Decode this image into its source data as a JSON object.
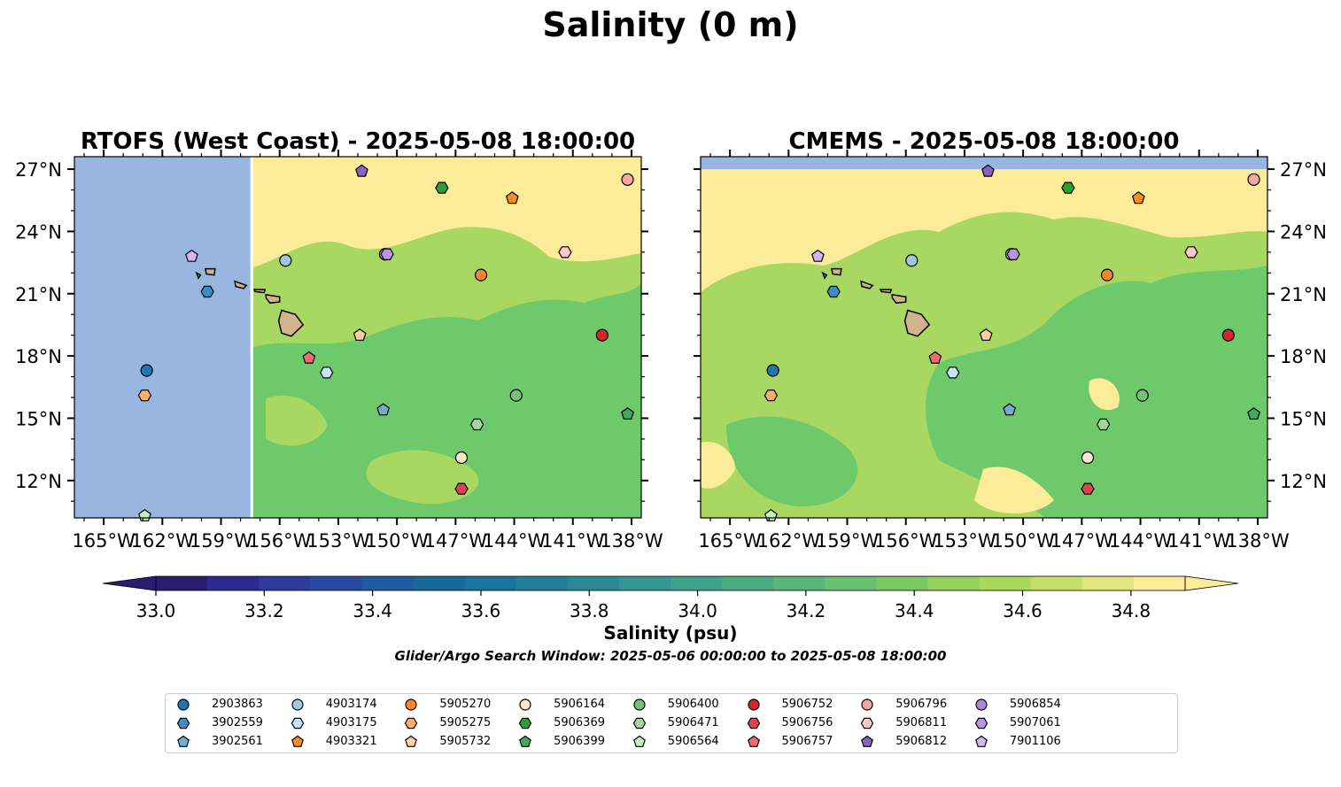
{
  "figure": {
    "title": "Salinity (0 m)",
    "colorbar_label": "Salinity (psu)",
    "search_window_note": "Glider/Argo Search Window: 2025-05-06 00:00:00 to 2025-05-08 18:00:00"
  },
  "panels": [
    {
      "id": "left",
      "title": "RTOFS (West Coast) - 2025-05-08 18:00:00",
      "model": "RTOFS (West Coast)",
      "time": "2025-05-08 18:00:00",
      "lat_labels_side": "left",
      "data_lon_min": -157.5
    },
    {
      "id": "right",
      "title": "CMEMS - 2025-05-08 18:00:00",
      "model": "CMEMS",
      "time": "2025-05-08 18:00:00",
      "lat_labels_side": "right",
      "data_lat_max": 27.0
    }
  ],
  "map_extent": {
    "lon_min": -166.5,
    "lon_max": -137.5,
    "lat_min": 10.2,
    "lat_max": 27.6
  },
  "lon_ticks": [
    {
      "value": -165,
      "label": "165°W"
    },
    {
      "value": -162,
      "label": "162°W"
    },
    {
      "value": -159,
      "label": "159°W"
    },
    {
      "value": -156,
      "label": "156°W"
    },
    {
      "value": -153,
      "label": "153°W"
    },
    {
      "value": -150,
      "label": "150°W"
    },
    {
      "value": -147,
      "label": "147°W"
    },
    {
      "value": -144,
      "label": "144°W"
    },
    {
      "value": -141,
      "label": "141°W"
    },
    {
      "value": -138,
      "label": "138°W"
    }
  ],
  "lat_ticks": [
    {
      "value": 27,
      "label": "27°N"
    },
    {
      "value": 24,
      "label": "24°N"
    },
    {
      "value": 21,
      "label": "21°N"
    },
    {
      "value": 18,
      "label": "18°N"
    },
    {
      "value": 15,
      "label": "15°N"
    },
    {
      "value": 12,
      "label": "12°N"
    }
  ],
  "colors": {
    "land": "#d2b48c",
    "no_data": "#98b6e0",
    "salinity_high": "#fcec9a",
    "salinity_mid": "#a8d862",
    "salinity_low": "#6ec96a"
  },
  "colorbar": {
    "min": 33.0,
    "max": 34.9,
    "step": 0.1,
    "ticks": [
      {
        "value": 33.0,
        "label": "33.0"
      },
      {
        "value": 33.2,
        "label": "33.2"
      },
      {
        "value": 33.4,
        "label": "33.4"
      },
      {
        "value": 33.6,
        "label": "33.6"
      },
      {
        "value": 33.8,
        "label": "33.8"
      },
      {
        "value": 34.0,
        "label": "34.0"
      },
      {
        "value": 34.2,
        "label": "34.2"
      },
      {
        "value": 34.4,
        "label": "34.4"
      },
      {
        "value": 34.6,
        "label": "34.6"
      },
      {
        "value": 34.8,
        "label": "34.8"
      }
    ],
    "bin_colors": [
      "#2a1d70",
      "#2e2a8f",
      "#2f3a9c",
      "#2a49a0",
      "#1f5a9f",
      "#19689c",
      "#1a749a",
      "#217f98",
      "#2a8a95",
      "#359591",
      "#40a08b",
      "#4caa83",
      "#5ab57a",
      "#6ac070",
      "#7dc864",
      "#94d15d",
      "#aad95a",
      "#c5df68",
      "#e0e67c",
      "#fcec9a"
    ],
    "under_color": "#2a1d70",
    "over_color": "#fcec9a"
  },
  "floats": [
    {
      "id": "2903863",
      "lon": -162.8,
      "lat": 17.3,
      "color": "#1f77b4",
      "marker": "circle"
    },
    {
      "id": "3902559",
      "lon": -159.7,
      "lat": 21.1,
      "color": "#3b8ec4",
      "marker": "hexagon"
    },
    {
      "id": "3902561",
      "lon": -150.7,
      "lat": 15.4,
      "color": "#6baed6",
      "marker": "pentagon"
    },
    {
      "id": "4903174",
      "lon": -155.7,
      "lat": 22.6,
      "color": "#9ecae1",
      "marker": "circle"
    },
    {
      "id": "4903175",
      "lon": -153.6,
      "lat": 17.2,
      "color": "#c6e4f5",
      "marker": "hexagon"
    },
    {
      "id": "4903321",
      "lon": -144.1,
      "lat": 25.6,
      "color": "#fd8d1c",
      "marker": "pentagon"
    },
    {
      "id": "5905270",
      "lon": -145.7,
      "lat": 21.9,
      "color": "#f5862a",
      "marker": "circle"
    },
    {
      "id": "5905275",
      "lon": -162.9,
      "lat": 16.1,
      "color": "#fdae6b",
      "marker": "hexagon"
    },
    {
      "id": "5905732",
      "lon": -151.9,
      "lat": 19.0,
      "color": "#fdd0a2",
      "marker": "pentagon"
    },
    {
      "id": "5906164",
      "lon": -146.7,
      "lat": 13.1,
      "color": "#fee6c8",
      "marker": "circle"
    },
    {
      "id": "5906369",
      "lon": -147.7,
      "lat": 26.1,
      "color": "#2ca02c",
      "marker": "hexagon"
    },
    {
      "id": "5906399",
      "lon": -138.2,
      "lat": 15.2,
      "color": "#41ab5d",
      "marker": "pentagon"
    },
    {
      "id": "5906400",
      "lon": -143.9,
      "lat": 16.1,
      "color": "#74c476",
      "marker": "circle"
    },
    {
      "id": "5906471",
      "lon": -145.9,
      "lat": 14.7,
      "color": "#a1d99b",
      "marker": "hexagon"
    },
    {
      "id": "5906564",
      "lon": -162.9,
      "lat": 10.3,
      "color": "#c7f2c0",
      "marker": "pentagon"
    },
    {
      "id": "5906752",
      "lon": -139.5,
      "lat": 19.0,
      "color": "#d62728",
      "marker": "circle"
    },
    {
      "id": "5906756",
      "lon": -146.7,
      "lat": 11.6,
      "color": "#e0434b",
      "marker": "hexagon"
    },
    {
      "id": "5906757",
      "lon": -154.5,
      "lat": 17.9,
      "color": "#f26b6e",
      "marker": "pentagon"
    },
    {
      "id": "5906796",
      "lon": -138.2,
      "lat": 26.5,
      "color": "#f7a6a1",
      "marker": "circle"
    },
    {
      "id": "5906811",
      "lon": -141.4,
      "lat": 23.0,
      "color": "#fcc9c7",
      "marker": "hexagon"
    },
    {
      "id": "5906812",
      "lon": -151.8,
      "lat": 26.9,
      "color": "#8c62c0",
      "marker": "pentagon"
    },
    {
      "id": "5906854",
      "lon": -150.6,
      "lat": 22.9,
      "color": "#a989d6",
      "marker": "circle"
    },
    {
      "id": "5907061",
      "lon": -150.5,
      "lat": 22.9,
      "color": "#b797e0",
      "marker": "hexagon"
    },
    {
      "id": "7901106",
      "lon": -160.5,
      "lat": 22.8,
      "color": "#d3b5f0",
      "marker": "pentagon"
    }
  ]
}
